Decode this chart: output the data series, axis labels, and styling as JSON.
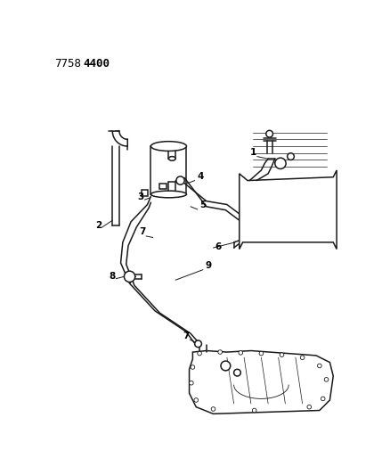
{
  "title_part1": "7758",
  "title_part2": "4400",
  "bg_color": "#ffffff",
  "line_color": "#1a1a1a",
  "fig_width": 4.29,
  "fig_height": 5.33,
  "dpi": 100
}
